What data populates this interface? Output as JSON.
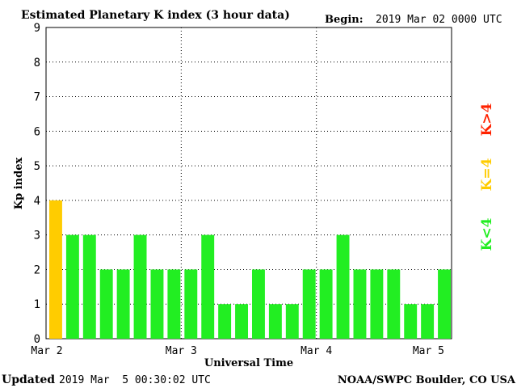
{
  "header": {
    "title": "Estimated Planetary K index (3 hour data)",
    "begin_label": "Begin:",
    "begin_value": "2019 Mar 02 0000 UTC"
  },
  "footer": {
    "updated_label": "Updated",
    "updated_value": "2019 Mar  5 00:30:02 UTC",
    "source": "NOAA/SWPC Boulder, CO USA"
  },
  "legend": {
    "high": "K>4",
    "mid": "K=4",
    "low": "K<4"
  },
  "colors": {
    "high": "#ff2200",
    "mid": "#ffcc00",
    "low": "#22ee22",
    "grid": "#000000"
  },
  "chart_data": {
    "type": "bar",
    "title": "Estimated Planetary K index (3 hour data)",
    "xlabel": "Universal Time",
    "ylabel": "Kp index",
    "ylim": [
      0,
      9
    ],
    "yticks": [
      "0",
      "1",
      "2",
      "3",
      "4",
      "5",
      "6",
      "7",
      "8",
      "9"
    ],
    "xticks": [
      "Mar 2",
      "Mar 3",
      "Mar 4",
      "Mar 5"
    ],
    "interval_hours": 3,
    "values": [
      4,
      3,
      3,
      2,
      2,
      3,
      2,
      2,
      2,
      3,
      1,
      1,
      2,
      1,
      1,
      2,
      2,
      3,
      2,
      2,
      2,
      1,
      1,
      2
    ],
    "grid": true
  }
}
